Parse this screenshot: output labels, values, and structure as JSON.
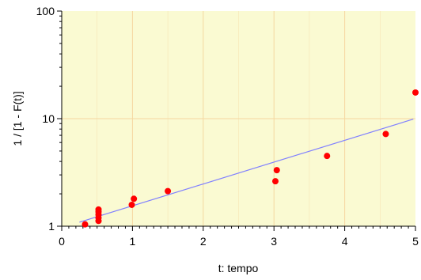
{
  "chart_data": {
    "type": "scatter",
    "xlabel": "t: tempo",
    "ylabel": "1 / [1 - F(t)]",
    "xlim": [
      0,
      5
    ],
    "ylim": [
      1,
      100
    ],
    "y_scale": "log",
    "x_ticks": [
      0,
      1,
      2,
      3,
      4,
      5
    ],
    "x_tick_labels": [
      "0",
      "1",
      "2",
      "3",
      "4",
      "5"
    ],
    "y_ticks": [
      1,
      10,
      100
    ],
    "y_tick_labels": [
      "1",
      "10",
      "100"
    ],
    "grid": true,
    "colors": {
      "plot_background": "#fafad2",
      "gridline": "#f5d7a0",
      "points": "#ff0000",
      "fit_line": "#8080ff",
      "axis": "#000000"
    },
    "points": [
      {
        "x": 0.33,
        "y": 1.04
      },
      {
        "x": 0.52,
        "y": 1.12
      },
      {
        "x": 0.52,
        "y": 1.2
      },
      {
        "x": 0.52,
        "y": 1.28
      },
      {
        "x": 0.52,
        "y": 1.36
      },
      {
        "x": 0.52,
        "y": 1.43
      },
      {
        "x": 0.99,
        "y": 1.58
      },
      {
        "x": 1.02,
        "y": 1.8
      },
      {
        "x": 1.5,
        "y": 2.12
      },
      {
        "x": 3.02,
        "y": 2.62
      },
      {
        "x": 3.04,
        "y": 3.32
      },
      {
        "x": 3.75,
        "y": 4.5
      },
      {
        "x": 4.58,
        "y": 7.2
      },
      {
        "x": 5.0,
        "y": 17.5
      }
    ],
    "fit_line": {
      "x": [
        0.25,
        4.97
      ],
      "y": [
        1.09,
        9.9
      ]
    }
  }
}
